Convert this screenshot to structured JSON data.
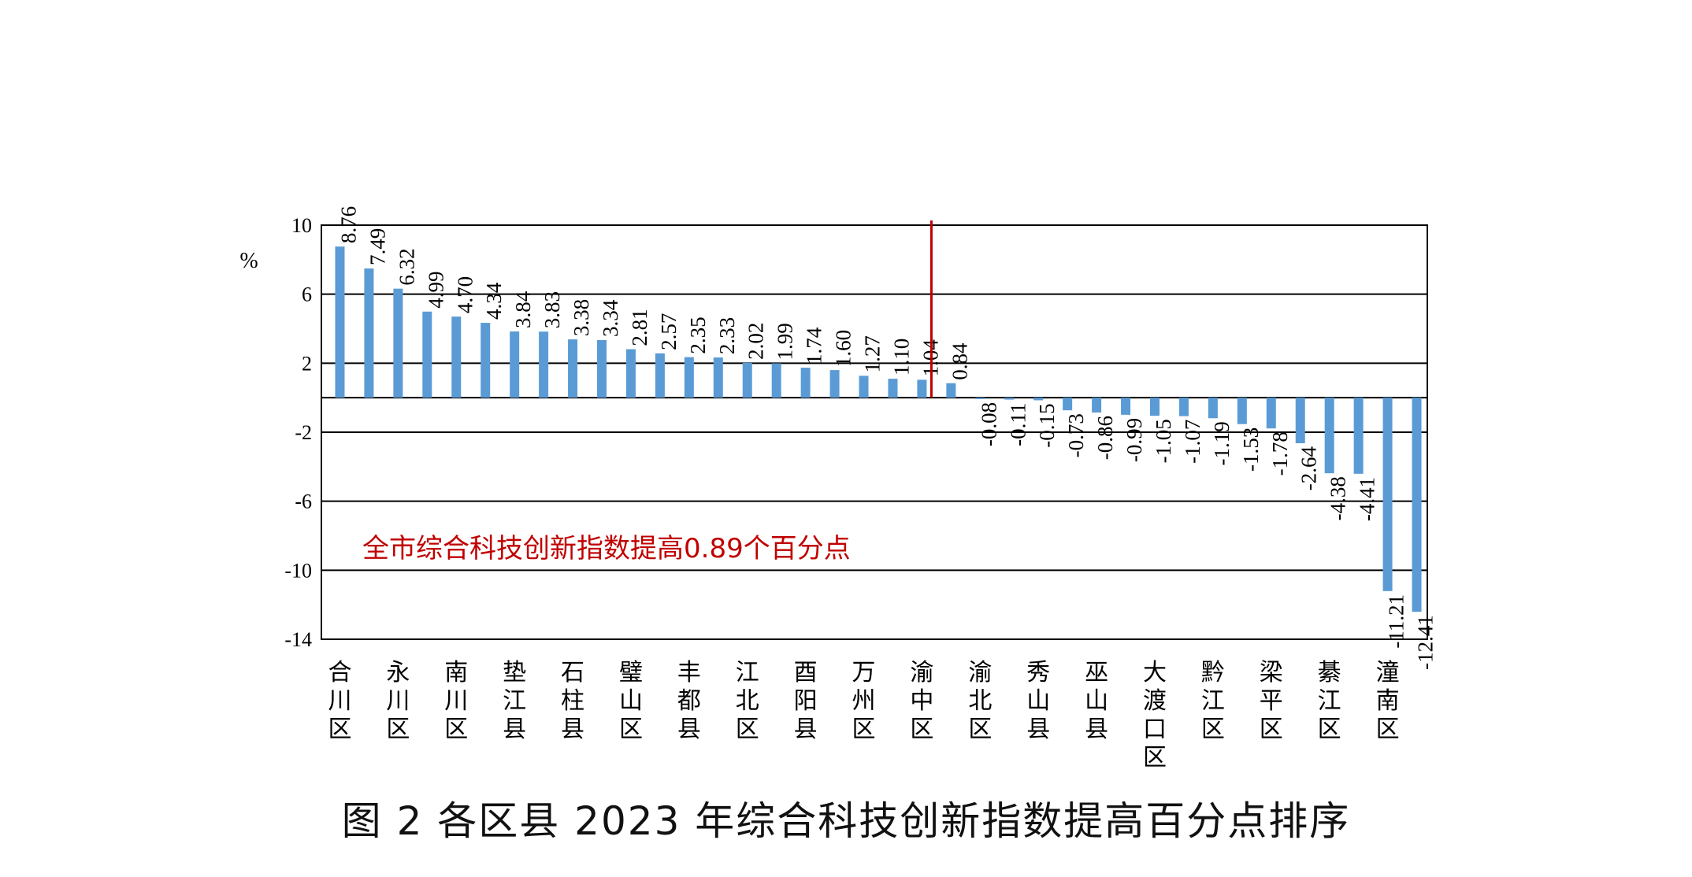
{
  "caption": "图 2   各区县 2023 年综合科技创新指数提高百分点排序",
  "chart_data": {
    "type": "bar",
    "ylabel": "%",
    "ylim": [
      -14,
      10
    ],
    "yticks": [
      10,
      6,
      2,
      -2,
      -6,
      -10,
      -14
    ],
    "grid": true,
    "categories": [
      "合川区",
      "",
      "永川区",
      "",
      "南川区",
      "",
      "垫江县",
      "",
      "石柱县",
      "",
      "璧山区",
      "",
      "丰都县",
      "",
      "江北区",
      "",
      "酉阳县",
      "",
      "万州区",
      "",
      "渝中区",
      "",
      "渝北区",
      "",
      "秀山县",
      "",
      "巫山县",
      "",
      "大渡口区",
      "",
      "黔江区",
      "",
      "梁平区",
      "",
      "綦江区",
      "",
      "潼南区",
      ""
    ],
    "values": [
      8.76,
      7.49,
      6.32,
      4.99,
      4.7,
      4.34,
      3.84,
      3.83,
      3.38,
      3.34,
      2.81,
      2.57,
      2.35,
      2.33,
      2.02,
      1.99,
      1.74,
      1.6,
      1.27,
      1.1,
      1.04,
      0.84,
      -0.08,
      -0.11,
      -0.15,
      -0.73,
      -0.86,
      -0.99,
      -1.05,
      -1.07,
      -1.19,
      -1.53,
      -1.78,
      -2.64,
      -4.38,
      -4.41,
      -11.21,
      -12.41
    ],
    "data_labels": [
      "8.76",
      "7.49",
      "6.32",
      "4.99",
      "4.70",
      "4.34",
      "3.84",
      "3.83",
      "3.38",
      "3.34",
      "2.81",
      "2.57",
      "2.35",
      "2.33",
      "2.02",
      "1.99",
      "1.74",
      "1.60",
      "1.27",
      "1.10",
      "1.04",
      "0.84",
      "-0.08",
      "-0.11",
      "-0.15",
      "-0.73",
      "-0.86",
      "-0.99",
      "-1.05",
      "-1.07",
      "-1.19",
      "-1.53",
      "-1.78",
      "-2.64",
      "-4.38",
      "-4.41",
      "-11.21",
      "-12.41"
    ],
    "bar_color": "#5b9bd5",
    "reference_line": {
      "after_index": 20,
      "color": "#c00000"
    },
    "annotation": {
      "text": "全市综合科技创新指数提高0.89个百分点",
      "color": "#c00000"
    }
  }
}
